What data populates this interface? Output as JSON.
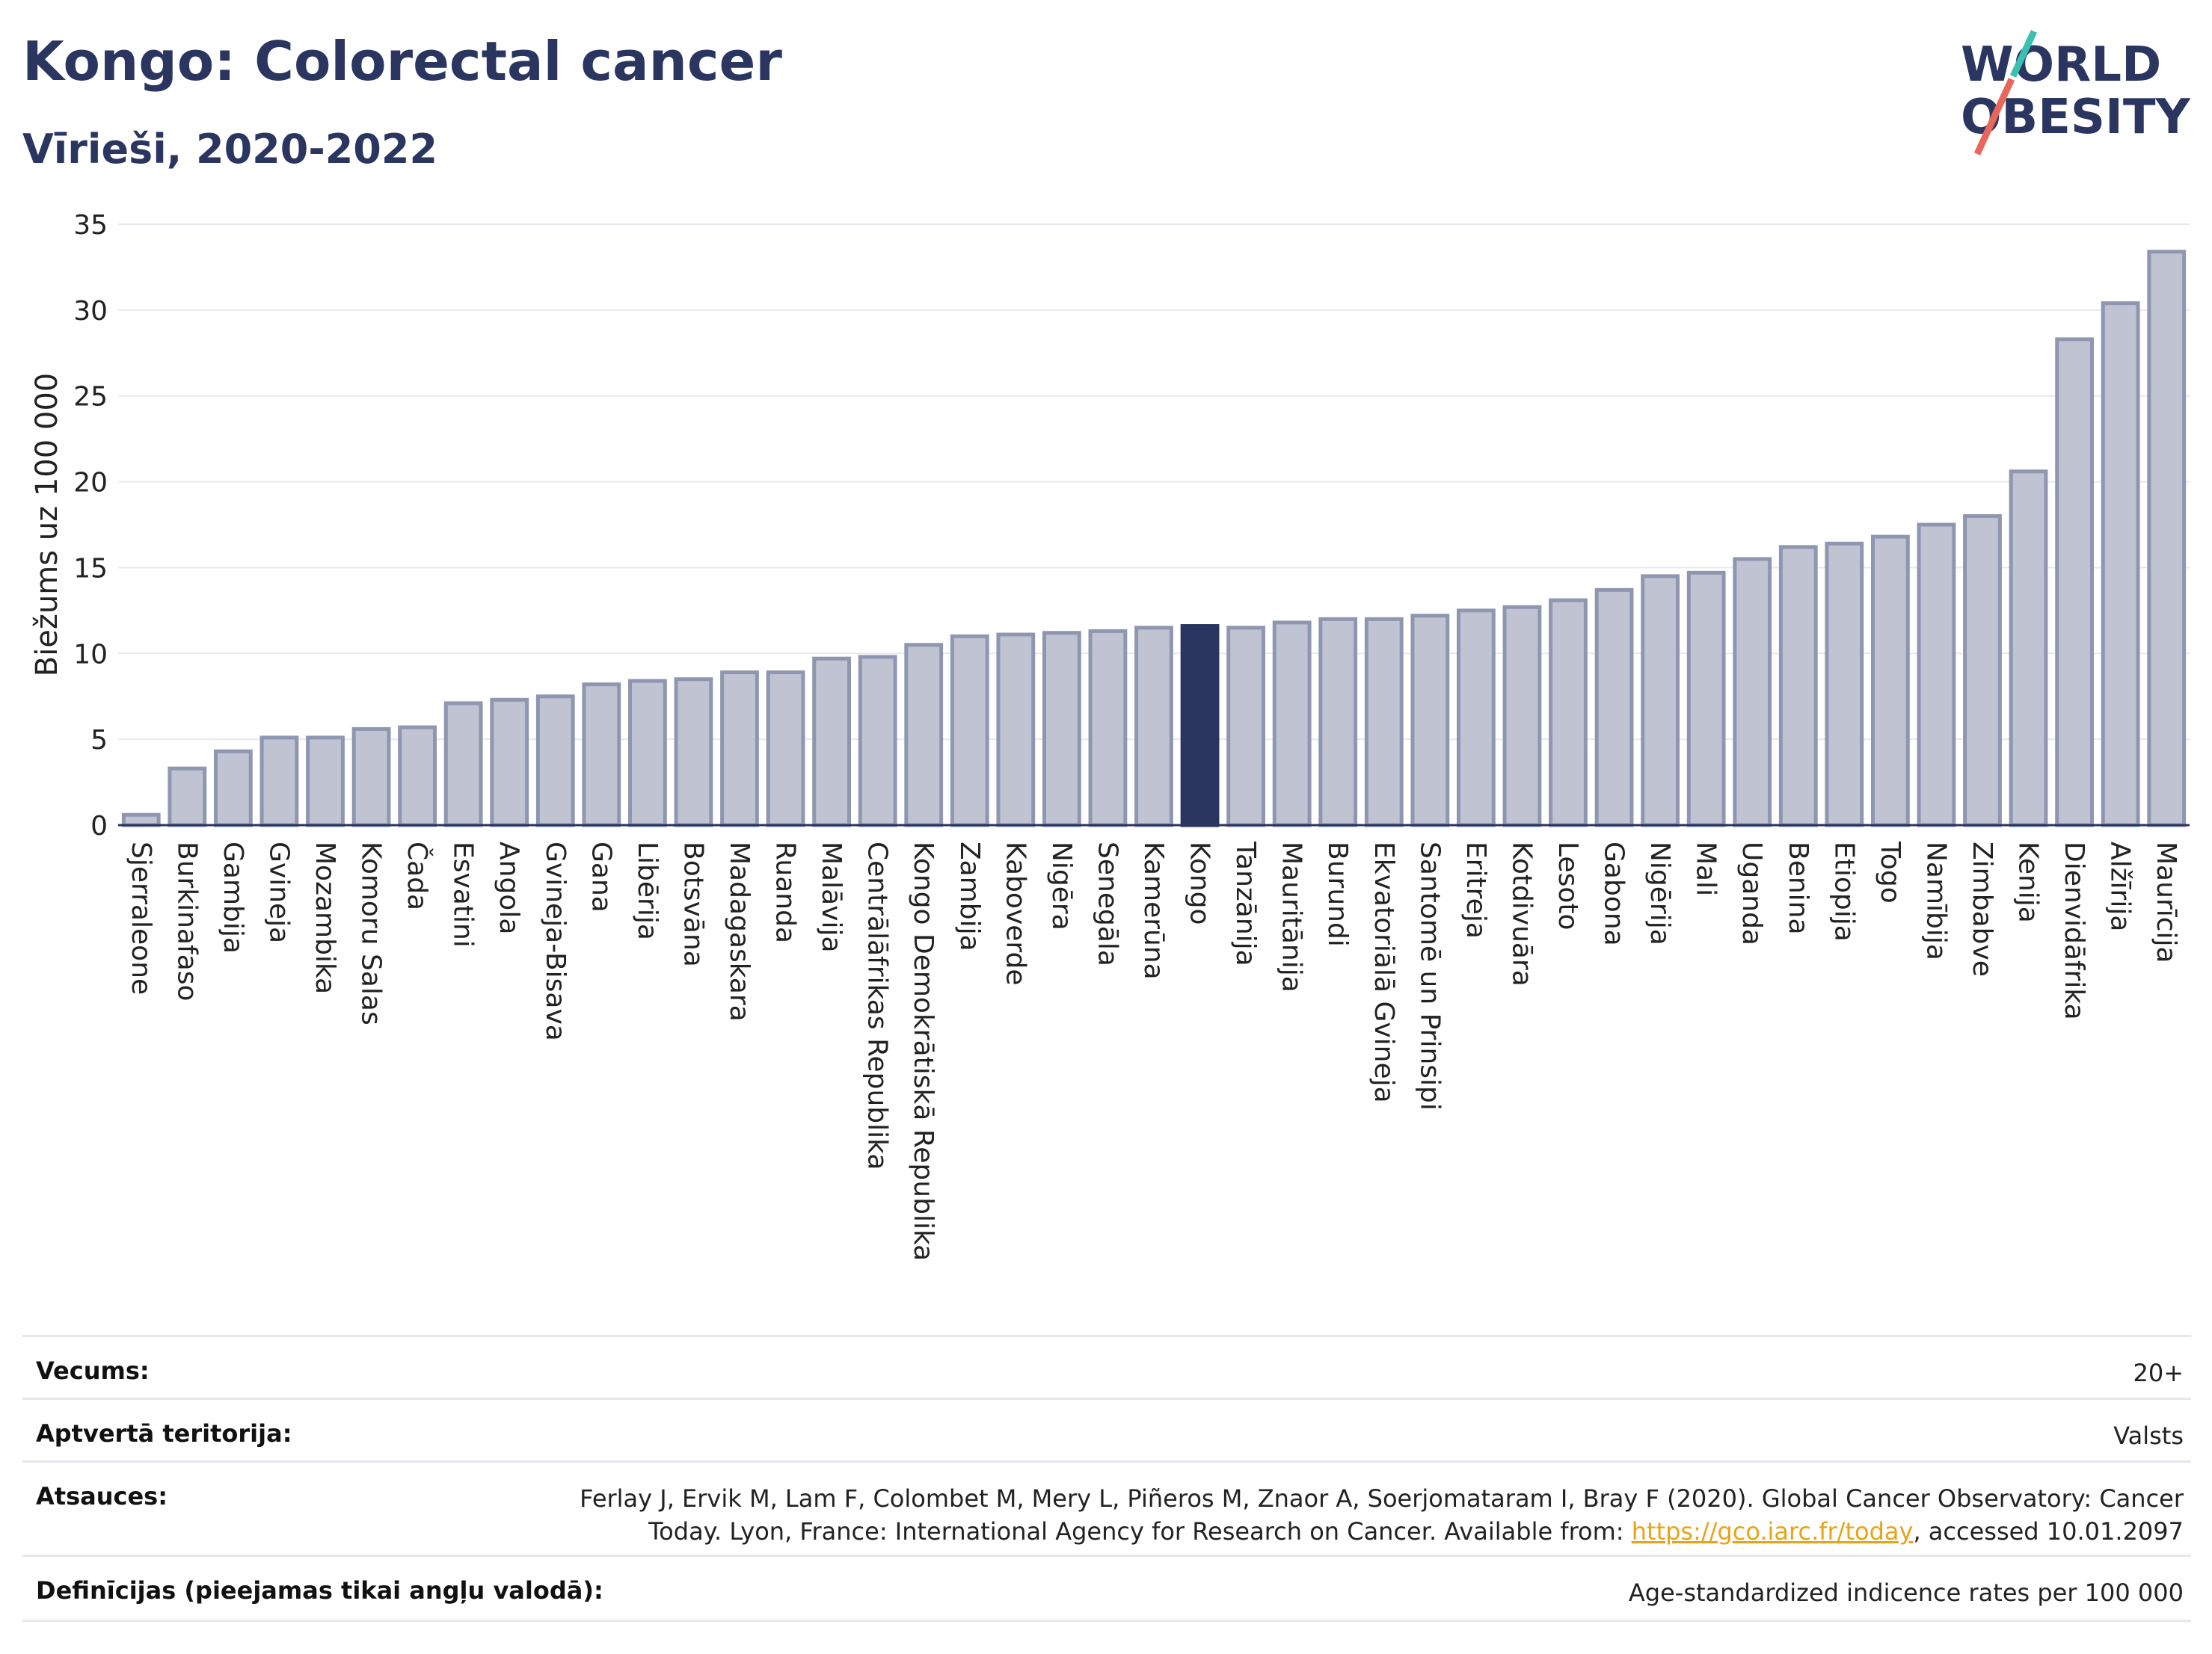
{
  "header": {
    "title": "Kongo: Colorectal cancer",
    "subtitle": "Vīrieši, 2020-2022"
  },
  "logo": {
    "line1": "WORLD",
    "line2": "OBESITY",
    "slash_colors": [
      "#3bbfb0",
      "#e8675a"
    ]
  },
  "chart_data": {
    "type": "bar",
    "ylabel": "Biežums uz 100 000",
    "ylim": [
      0,
      35
    ],
    "yticks": [
      0,
      5,
      10,
      15,
      20,
      25,
      30,
      35
    ],
    "grid": true,
    "highlight": "Kongo",
    "colors": {
      "bar": "#bfc3d2",
      "bar_border": "#8f96b0",
      "highlight": "#2a3560"
    },
    "categories": [
      "Sjerraleone",
      "Burkinafaso",
      "Gambija",
      "Gvineja",
      "Mozambika",
      "Komoru Salas",
      "Čada",
      "Esvatini",
      "Angola",
      "Gvineja-Bisava",
      "Gana",
      "Libērija",
      "Botsvāna",
      "Madagaskara",
      "Ruanda",
      "Malāvija",
      "Centrālāfrikas Republika",
      "Kongo Demokrātiskā Republika",
      "Zambija",
      "Kaboverde",
      "Nigēra",
      "Senegāla",
      "Kamerūna",
      "Kongo",
      "Tanzānija",
      "Mauritānija",
      "Burundi",
      "Ekvatoriālā Gvineja",
      "Santomē un Prinsipi",
      "Eritreja",
      "Kotdivuāra",
      "Lesoto",
      "Gabona",
      "Nigērija",
      "Mali",
      "Uganda",
      "Benina",
      "Etiopija",
      "Togo",
      "Namībija",
      "Zimbabve",
      "Kenija",
      "Dienvidāfrika",
      "Alžīrija",
      "Maurīcija"
    ],
    "values": [
      0.6,
      3.3,
      4.3,
      5.1,
      5.1,
      5.6,
      5.7,
      7.1,
      7.3,
      7.5,
      8.2,
      8.4,
      8.5,
      8.9,
      8.9,
      9.7,
      9.8,
      10.5,
      11.0,
      11.1,
      11.2,
      11.3,
      11.5,
      11.6,
      11.5,
      11.8,
      12.0,
      12.0,
      12.2,
      12.5,
      12.7,
      13.1,
      13.7,
      14.5,
      14.7,
      15.5,
      16.2,
      16.4,
      16.8,
      17.5,
      18.0,
      20.6,
      28.3,
      30.4,
      33.4
    ]
  },
  "meta": {
    "rows": [
      {
        "label": "Vecums:",
        "value": "20+"
      },
      {
        "label": "Aptvertā teritorija:",
        "value": "Valsts"
      },
      {
        "label": "Atsauces:",
        "value_line1": "Ferlay J, Ervik M, Lam F, Colombet M, Mery L, Piñeros M, Znaor A, Soerjomataram I, Bray F (2020). Global Cancer Observatory: Cancer",
        "value_line2_pre": "Today. Lyon, France: International Agency for Research on Cancer. Available from: ",
        "link": "https://gco.iarc.fr/today",
        "value_line2_post": ", accessed 10.01.2097"
      },
      {
        "label": "Definīcijas (pieejamas tikai angļu valodā):",
        "value": "Age-standardized indicence rates per 100 000"
      }
    ]
  }
}
